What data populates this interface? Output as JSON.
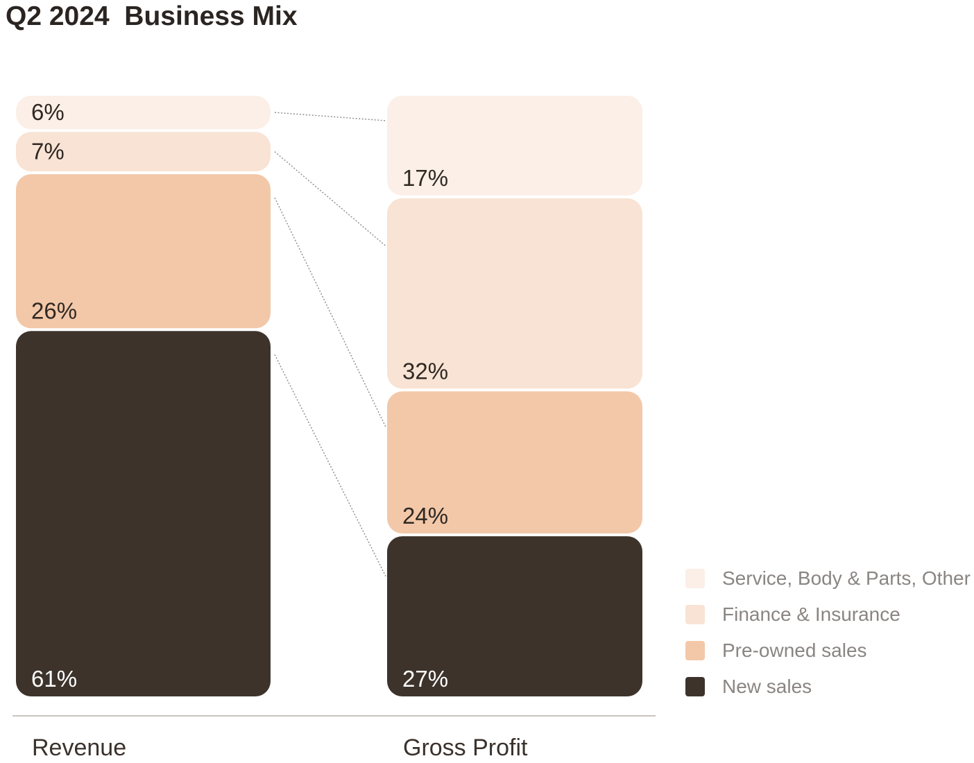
{
  "title": "Q2 2024  Business Mix",
  "chart_data": {
    "type": "stacked-bar",
    "title": "Q2 2024  Business Mix",
    "unit": "%",
    "categories": [
      "Revenue",
      "Gross Profit"
    ],
    "series": [
      {
        "name": "New sales",
        "color": "#3d332b",
        "text_color": "#ffffff",
        "values": [
          61,
          27
        ],
        "labels": [
          "61%",
          "27%"
        ]
      },
      {
        "name": "Pre-owned sales",
        "color": "#f2c8a9",
        "text_color": "#2f2823",
        "values": [
          26,
          24
        ],
        "labels": [
          "26%",
          "24%"
        ]
      },
      {
        "name": "Finance & Insurance",
        "color": "#f8e3d4",
        "text_color": "#2f2823",
        "values": [
          7,
          32
        ],
        "labels": [
          "7%",
          "32%"
        ]
      },
      {
        "name": "Service, Body & Parts, Other",
        "color": "#fbefe7",
        "text_color": "#2f2823",
        "values": [
          6,
          17
        ],
        "labels": [
          "6%",
          "17%"
        ]
      }
    ],
    "legend": [
      "Service, Body & Parts, Other",
      "Finance & Insurance",
      "Pre-owned sales",
      "New sales"
    ],
    "legend_position": "right",
    "connectors": "dotted"
  }
}
